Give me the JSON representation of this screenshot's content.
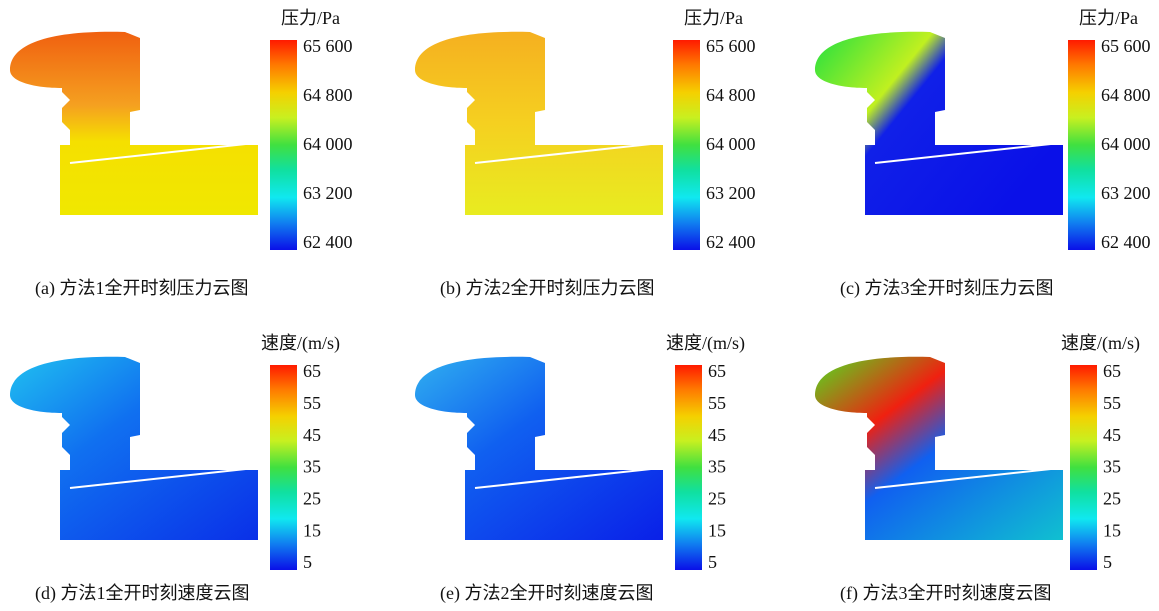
{
  "panels": [
    {
      "caption": "(a)  方法1全开时刻压力云图",
      "legend_title": "压力/Pa",
      "legend_ticks": [
        "65 600",
        "64 800",
        "64 000",
        "63 200",
        "62 400"
      ]
    },
    {
      "caption": "(b)  方法2全开时刻压力云图",
      "legend_title": "压力/Pa",
      "legend_ticks": [
        "65 600",
        "64 800",
        "64 000",
        "63 200",
        "62 400"
      ]
    },
    {
      "caption": "(c)  方法3全开时刻压力云图",
      "legend_title": "压力/Pa",
      "legend_ticks": [
        "65 600",
        "64 800",
        "64 000",
        "63 200",
        "62 400"
      ]
    },
    {
      "caption": "(d)  方法1全开时刻速度云图",
      "legend_title": "速度/(m/s)",
      "legend_ticks": [
        "65",
        "55",
        "45",
        "35",
        "25",
        "15",
        "5"
      ]
    },
    {
      "caption": "(e)  方法2全开时刻速度云图",
      "legend_title": "速度/(m/s)",
      "legend_ticks": [
        "65",
        "55",
        "45",
        "35",
        "25",
        "15",
        "5"
      ]
    },
    {
      "caption": "(f)  方法3全开时刻速度云图",
      "legend_title": "速度/(m/s)",
      "legend_ticks": [
        "65",
        "55",
        "45",
        "35",
        "25",
        "15",
        "5"
      ]
    }
  ]
}
